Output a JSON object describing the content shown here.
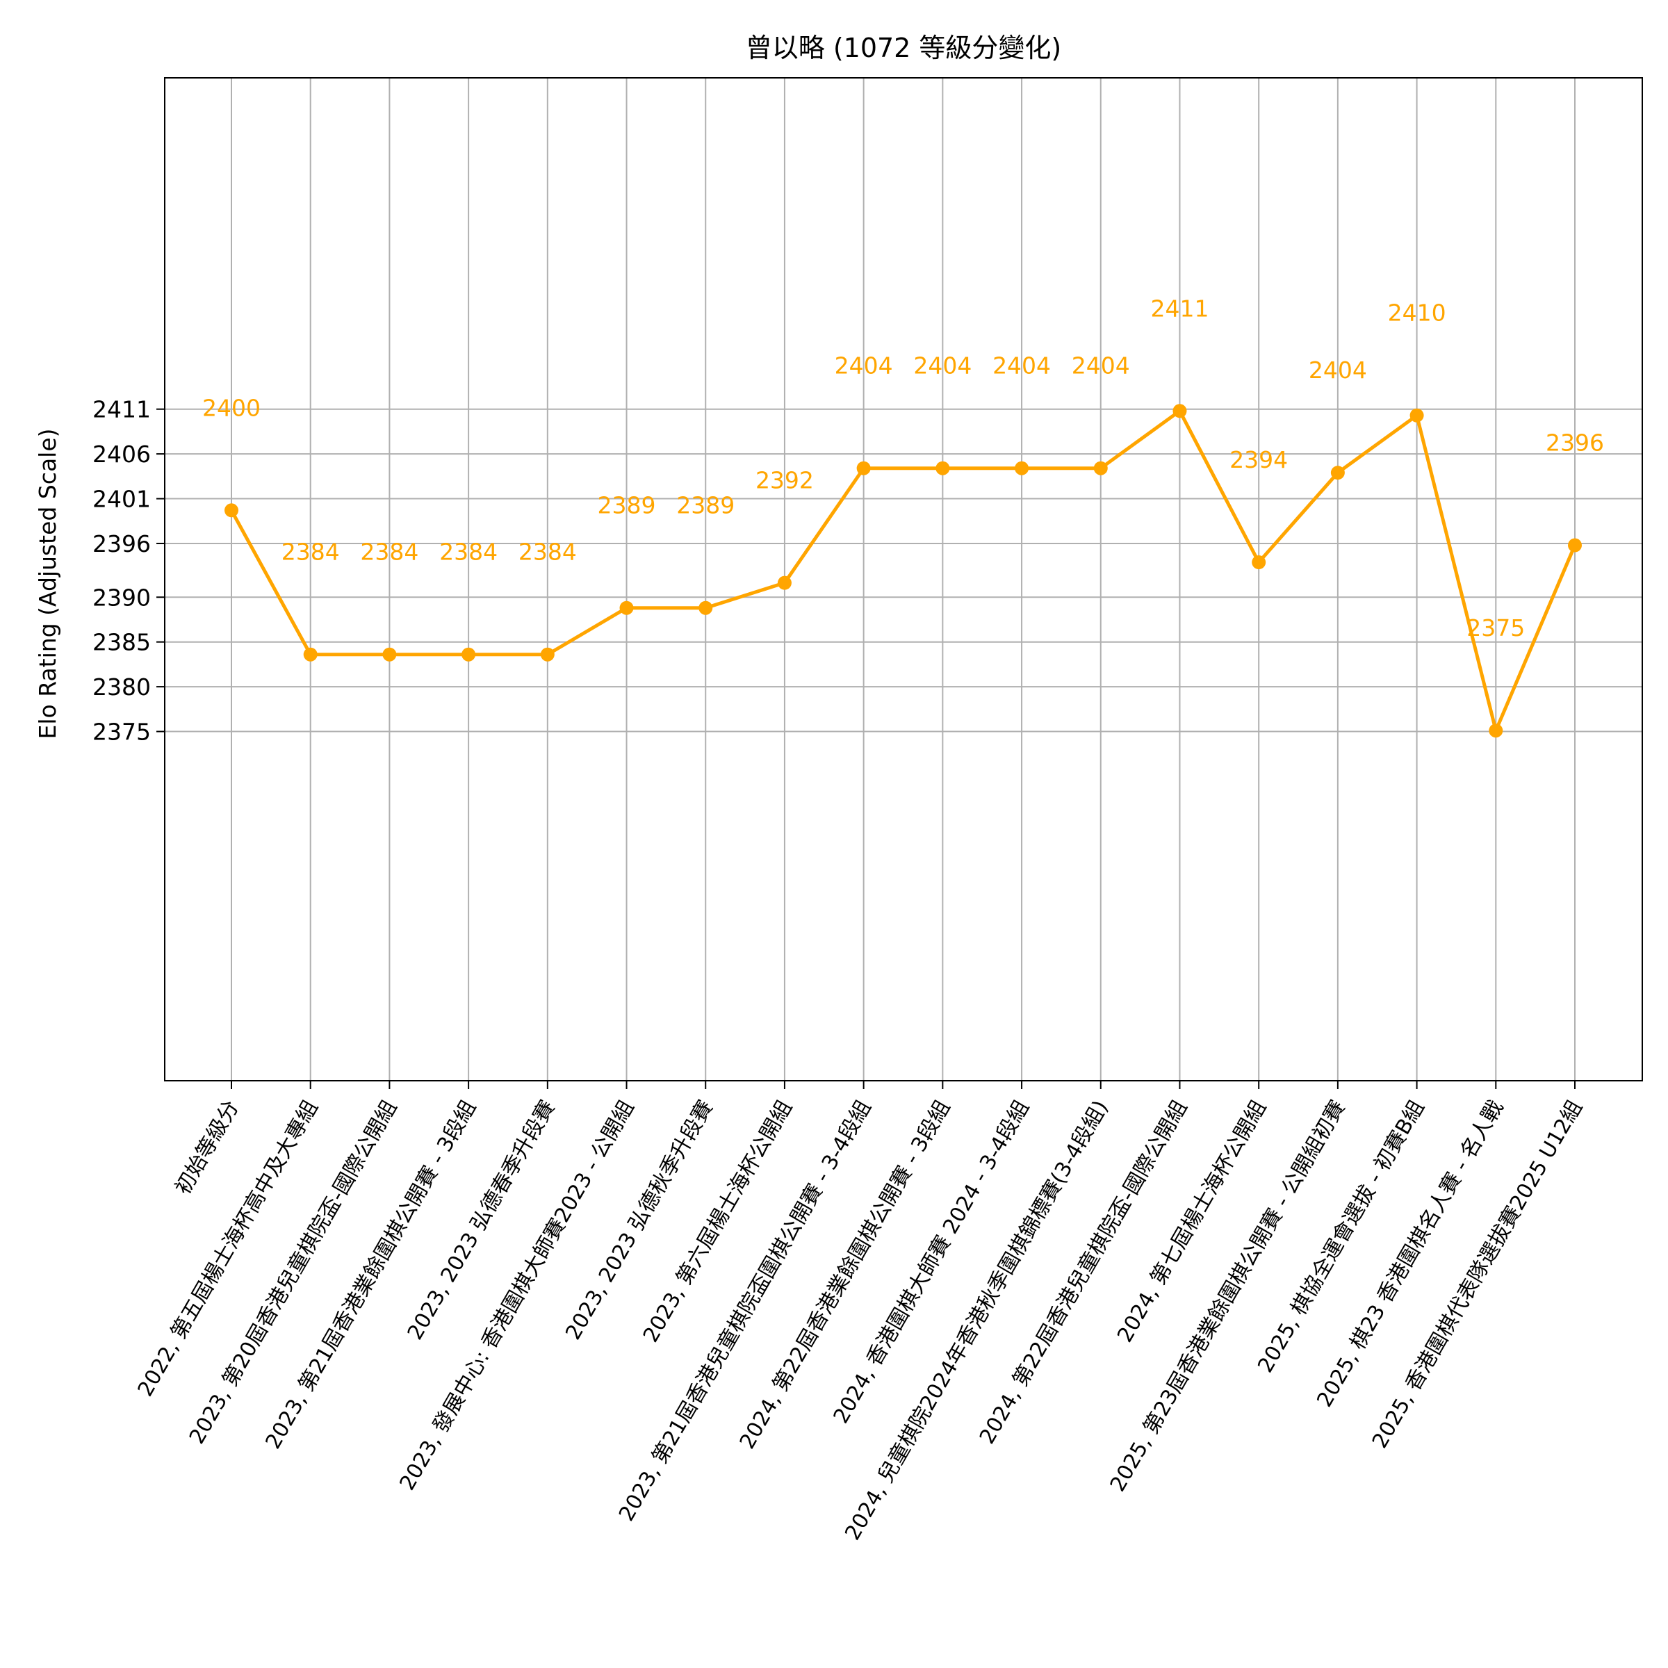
{
  "chart_data": {
    "type": "line",
    "title": "曾以略  (1072 等級分變化)",
    "xlabel": "",
    "ylabel": "Elo Rating (Adjusted Scale)",
    "ylim": [
      2336,
      2448
    ],
    "yticks": [
      2375,
      2380,
      2385,
      2390,
      2396,
      2401,
      2406,
      2411
    ],
    "grid": true,
    "color": "#FFA500",
    "categories": [
      "初始等級分",
      "2022, 第五屆楊士海杯高中及大專組",
      "2023, 第20屆香港兒童棋院盃-國際公開組",
      "2023, 第21屆香港業餘圍棋公開賽 - 3段組",
      "2023, 2023 弘德春季升段賽",
      "2023, 發展中心: 香港圍棋大師賽2023 - 公開組",
      "2023, 2023 弘德秋季升段賽",
      "2023, 第六屆楊士海杯公開組",
      "2023, 第21屆香港兒童棋院盃圍棋公開賽 - 3-4段組",
      "2024, 第22屆香港業餘圍棋公開賽 - 3段組",
      "2024, 香港圍棋大師賽 2024 - 3-4段組",
      "2024, 兒童棋院2024年香港秋季圍棋錦標賽(3-4段組)",
      "2024, 第22屆香港兒童棋院盃-國際公開組",
      "2024, 第七屆楊士海杯公開組",
      "2025, 第23屆香港業餘圍棋公開賽 - 公開組初賽",
      "2025, 棋協全運會選拔 - 初賽B組",
      "2025, 棋23  香港圍棋名人賽 - 名人戰",
      "2025, 香港圍棋代表隊選拔賽2025 U12組"
    ],
    "values": [
      2399.7,
      2383.6,
      2383.6,
      2383.6,
      2383.6,
      2388.8,
      2388.8,
      2391.6,
      2404.4,
      2404.4,
      2404.4,
      2404.4,
      2410.8,
      2393.9,
      2403.9,
      2410.3,
      2375.1,
      2395.8
    ],
    "data_labels": [
      "2400",
      "2384",
      "2384",
      "2384",
      "2384",
      "2389",
      "2389",
      "2392",
      "2404",
      "2404",
      "2404",
      "2404",
      "2411",
      "2394",
      "2404",
      "2410",
      "2375",
      "2396"
    ]
  }
}
